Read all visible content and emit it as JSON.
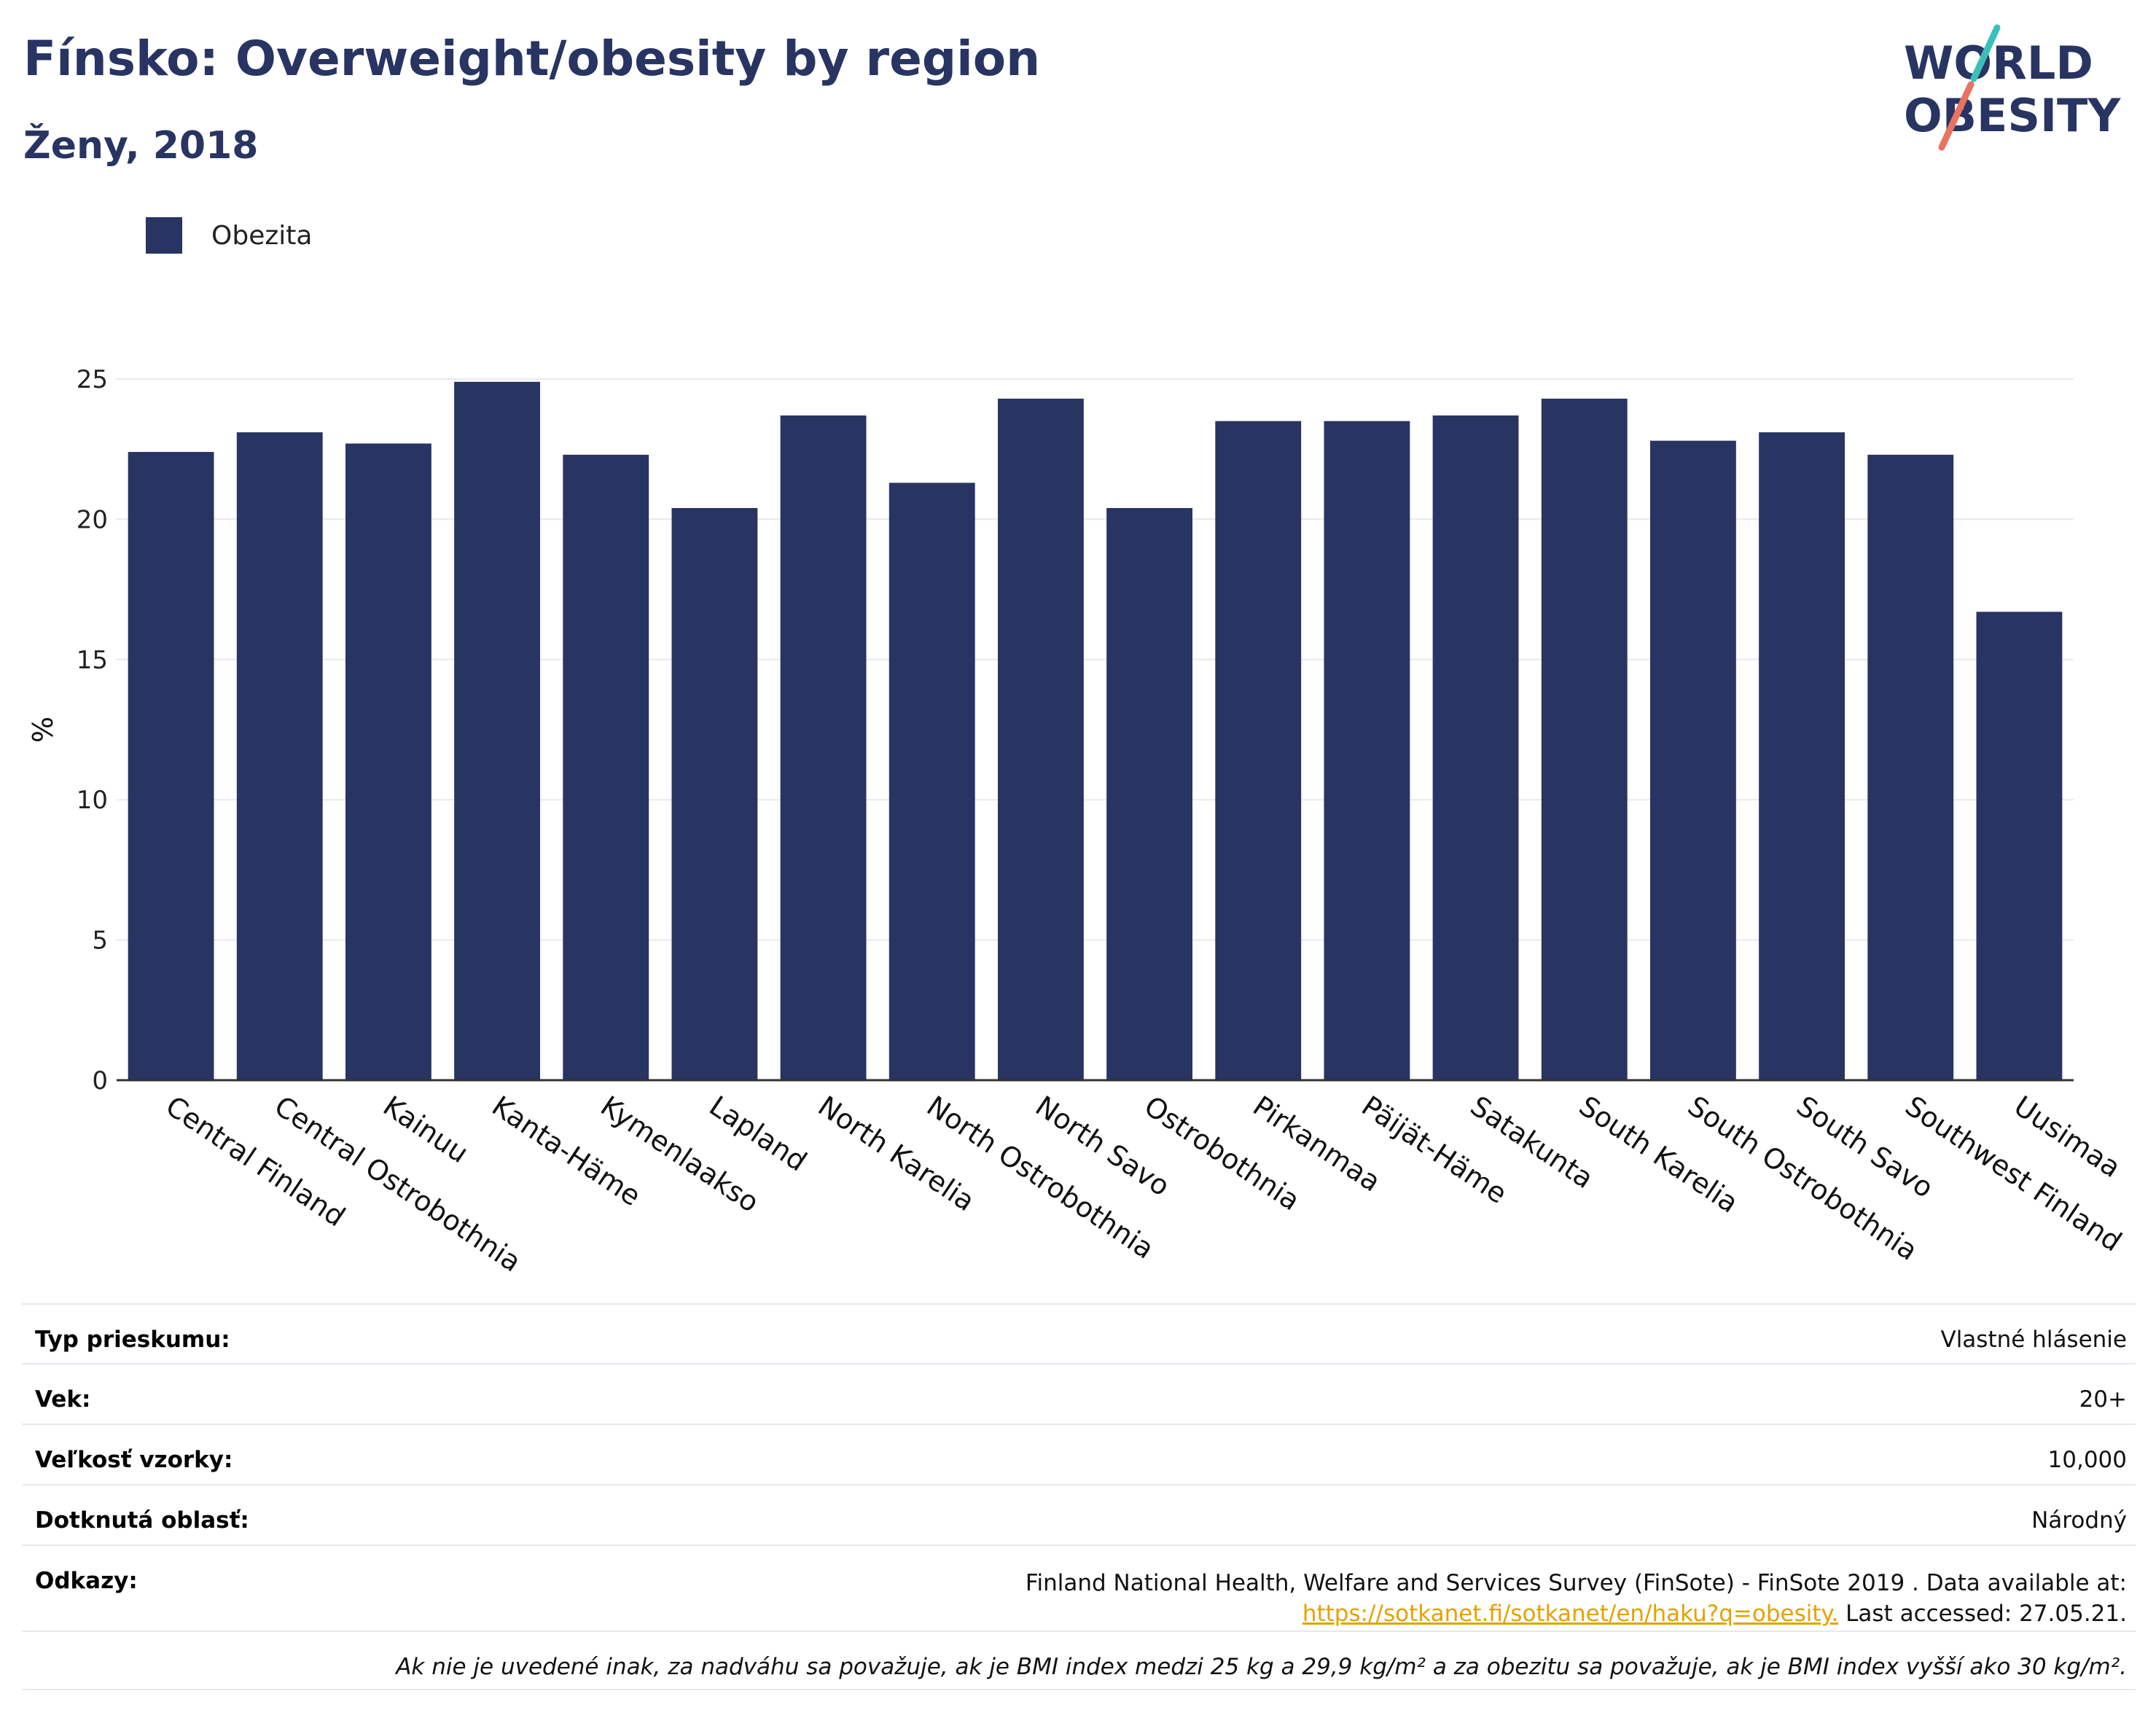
{
  "header": {
    "title": "Fínsko: Overweight/obesity by region",
    "subtitle": "Ženy, 2018"
  },
  "logo": {
    "line1": "WORLD",
    "line2": "OBESITY",
    "icon": "slash-logo-icon",
    "colors": {
      "text": "#283462",
      "slash_top": "#3bbfb8",
      "slash_bottom": "#e8735f"
    }
  },
  "legend": {
    "label": "Obezita",
    "color": "#283462"
  },
  "chart_data": {
    "type": "bar",
    "title": "",
    "xlabel": "",
    "ylabel": "%",
    "ylim": [
      0,
      25
    ],
    "yticks": [
      0,
      5,
      10,
      15,
      20,
      25
    ],
    "grid": true,
    "legend_position": "top-left",
    "categories": [
      "Central Finland",
      "Central Ostrobothnia",
      "Kainuu",
      "Kanta-Häme",
      "Kymenlaakso",
      "Lapland",
      "North Karelia",
      "North Ostrobothnia",
      "North Savo",
      "Ostrobothnia",
      "Pirkanmaa",
      "Päijät-Häme",
      "Satakunta",
      "South Karelia",
      "South Ostrobothnia",
      "South Savo",
      "Southwest Finland",
      "Uusimaa"
    ],
    "series": [
      {
        "name": "Obezita",
        "color": "#283462",
        "values": [
          22.4,
          23.1,
          22.7,
          24.9,
          22.3,
          20.4,
          23.7,
          21.3,
          24.3,
          20.4,
          23.5,
          23.5,
          23.7,
          24.3,
          22.8,
          23.1,
          22.3,
          16.7
        ]
      }
    ]
  },
  "info": {
    "survey_type_label": "Typ prieskumu:",
    "survey_type_value": "Vlastné hlásenie",
    "age_label": "Vek:",
    "age_value": "20+",
    "sample_label": "Veľkosť vzorky:",
    "sample_value": "10,000",
    "area_label": "Dotknutá oblasť:",
    "area_value": "Národný",
    "refs_label": "Odkazy:",
    "refs_text": "Finland National Health, Welfare and Services Survey (FinSote) - FinSote 2019 . Data available at:",
    "refs_link": "https://sotkanet.fi/sotkanet/en/haku?q=obesity.",
    "refs_accessed": " Last accessed: 27.05.21.",
    "footnote": "Ak nie je uvedené inak, za nadváhu sa považuje, ak je BMI index medzi 25 kg a 29,9 kg/m² a za obezitu sa považuje, ak je BMI index vyšší ako 30 kg/m²."
  }
}
